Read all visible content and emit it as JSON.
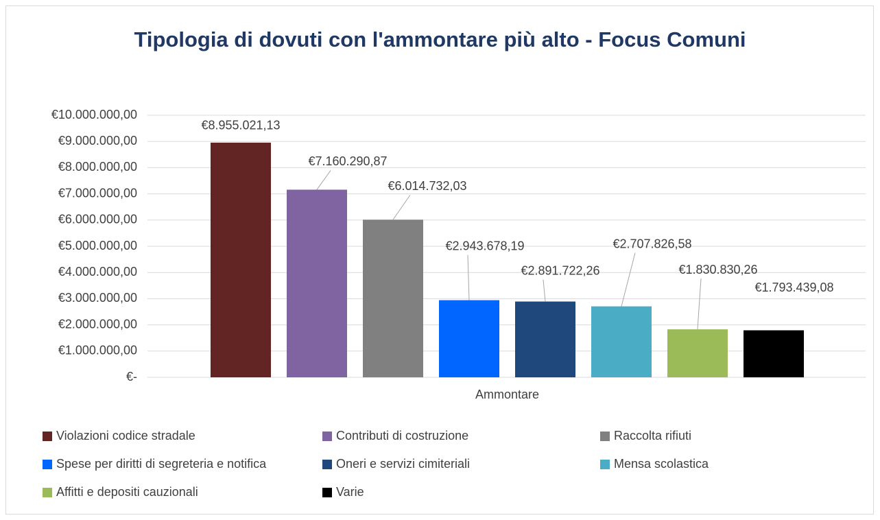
{
  "chart_data": {
    "type": "bar",
    "title": "Tipologia di dovuti con l'ammontare più alto - Focus Comuni",
    "categories": [
      "Ammontare"
    ],
    "series": [
      {
        "name": "Violazioni codice stradale",
        "color": "#632523",
        "values": [
          8955021.13
        ],
        "value_labels": [
          "€8.955.021,13"
        ]
      },
      {
        "name": "Contributi di costruzione",
        "color": "#8064a2",
        "values": [
          7160290.87
        ],
        "value_labels": [
          "€7.160.290,87"
        ]
      },
      {
        "name": "Raccolta rifiuti",
        "color": "#808080",
        "values": [
          6014732.03
        ],
        "value_labels": [
          "€6.014.732,03"
        ]
      },
      {
        "name": "Spese per diritti di segreteria e notifica",
        "color": "#0066ff",
        "values": [
          2943678.19
        ],
        "value_labels": [
          "€2.943.678,19"
        ]
      },
      {
        "name": "Oneri e servizi cimiteriali",
        "color": "#1f497d",
        "values": [
          2891722.26
        ],
        "value_labels": [
          "€2.891.722,26"
        ]
      },
      {
        "name": "Mensa scolastica",
        "color": "#4bacc6",
        "values": [
          2707826.58
        ],
        "value_labels": [
          "€2.707.826,58"
        ]
      },
      {
        "name": "Affitti e depositi cauzionali",
        "color": "#9bbb59",
        "values": [
          1830830.26
        ],
        "value_labels": [
          "€1.830.830,26"
        ]
      },
      {
        "name": "Varie",
        "color": "#000000",
        "values": [
          1793439.08
        ],
        "value_labels": [
          "€1.793.439,08"
        ]
      }
    ],
    "ylim": [
      0,
      10000000
    ],
    "yticks": [
      {
        "value": 0,
        "label": "€-"
      },
      {
        "value": 1000000,
        "label": "€1.000.000,00"
      },
      {
        "value": 2000000,
        "label": "€2.000.000,00"
      },
      {
        "value": 3000000,
        "label": "€3.000.000,00"
      },
      {
        "value": 4000000,
        "label": "€4.000.000,00"
      },
      {
        "value": 5000000,
        "label": "€5.000.000,00"
      },
      {
        "value": 6000000,
        "label": "€6.000.000,00"
      },
      {
        "value": 7000000,
        "label": "€7.000.000,00"
      },
      {
        "value": 8000000,
        "label": "€8.000.000,00"
      },
      {
        "value": 9000000,
        "label": "€9.000.000,00"
      },
      {
        "value": 10000000,
        "label": "€10.000.000,00"
      }
    ],
    "grid": true,
    "legend": "bottom"
  }
}
